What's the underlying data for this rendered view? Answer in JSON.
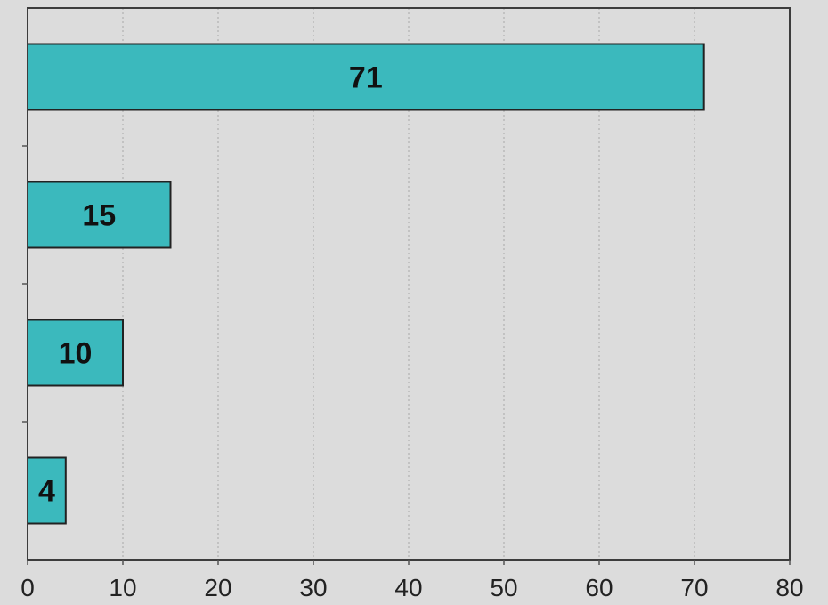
{
  "colors": {
    "background": "#dcdcdc",
    "bar_fill": "#3bb9bd",
    "bar_stroke": "#222222",
    "grid": "#a9a9a9"
  },
  "chart_data": {
    "type": "bar",
    "orientation": "horizontal",
    "values": [
      71,
      15,
      10,
      4
    ],
    "data_labels": [
      "71",
      "15",
      "10",
      "4"
    ],
    "xlim": [
      0,
      80
    ],
    "x_ticks": [
      0,
      10,
      20,
      30,
      40,
      50,
      60,
      70,
      80
    ],
    "x_tick_labels": [
      "0",
      "10",
      "20",
      "30",
      "40",
      "50",
      "60",
      "70",
      "80"
    ],
    "grid": "vertical-dotted",
    "legend": "none"
  }
}
